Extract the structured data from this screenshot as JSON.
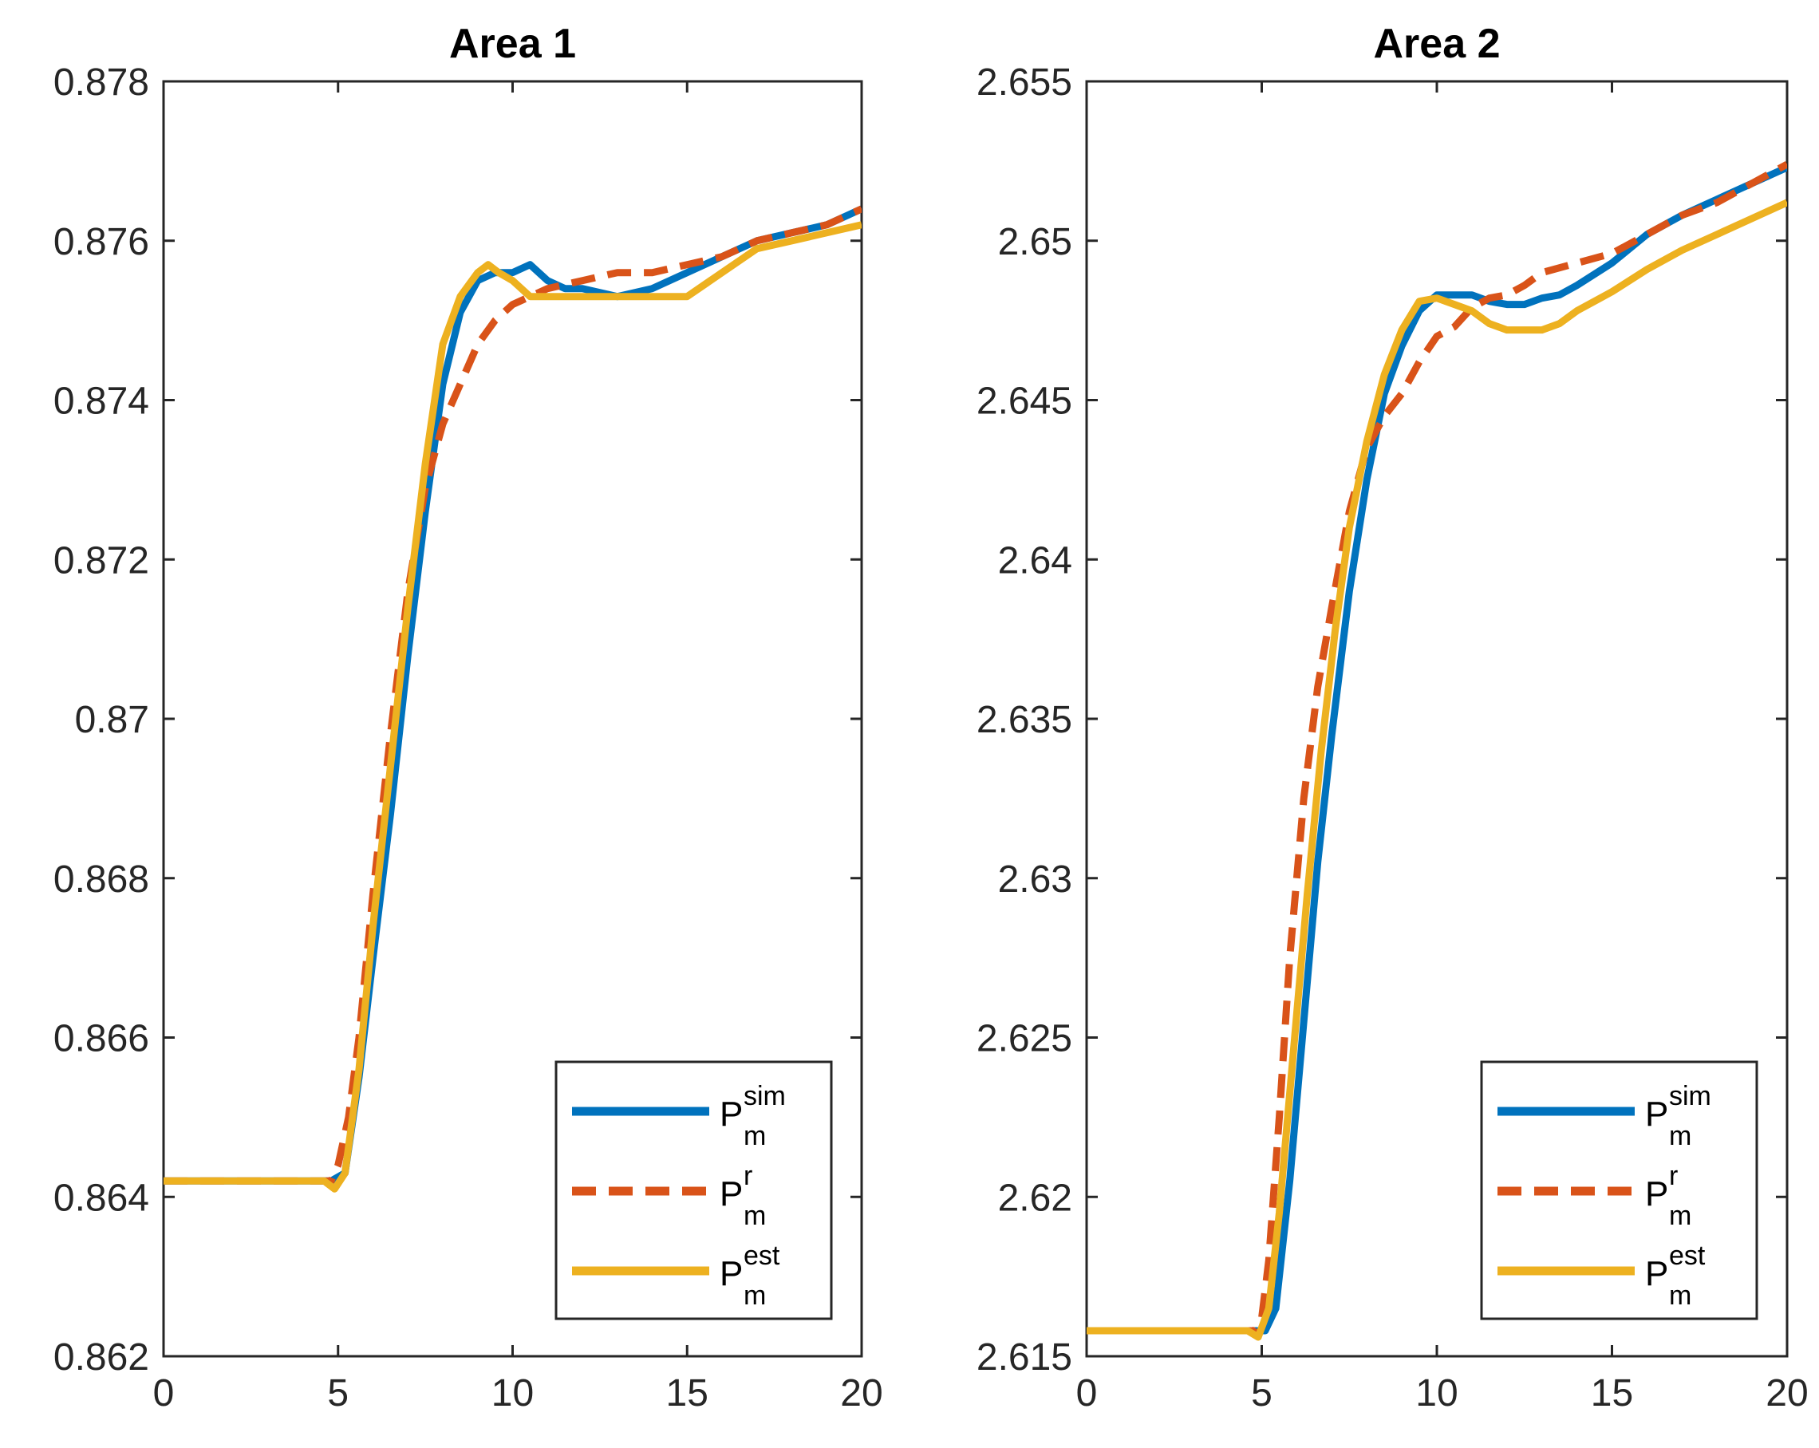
{
  "chart_data": [
    {
      "type": "line",
      "title": "Area 1",
      "xlabel": "",
      "ylabel": "",
      "xlim": [
        0,
        20
      ],
      "ylim": [
        0.862,
        0.878
      ],
      "xticks": [
        0,
        5,
        10,
        15,
        20
      ],
      "xtick_labels": [
        "0",
        "5",
        "10",
        "15",
        "20"
      ],
      "yticks": [
        0.862,
        0.864,
        0.866,
        0.868,
        0.87,
        0.872,
        0.874,
        0.876,
        0.878
      ],
      "ytick_labels": [
        "0.862",
        "0.864",
        "0.866",
        "0.868",
        "0.87",
        "0.872",
        "0.874",
        "0.876",
        "0.878"
      ],
      "grid": false,
      "legend": {
        "location": "bottom-right"
      },
      "series": [
        {
          "name": "sim",
          "legend_main": "P",
          "legend_sup": "sim",
          "legend_sub": "m",
          "color": "#0072BD",
          "style": "solid",
          "x": [
            0,
            1,
            2,
            3,
            4,
            4.8,
            5.2,
            5.6,
            6.0,
            6.5,
            7.0,
            7.5,
            8.0,
            8.5,
            9.0,
            9.5,
            10.0,
            10.5,
            11.0,
            11.5,
            12.0,
            13.0,
            14.0,
            14.5,
            15.0,
            16.0,
            17.0,
            18.0,
            19.0,
            20.0
          ],
          "y": [
            0.8642,
            0.8642,
            0.8642,
            0.8642,
            0.8642,
            0.8642,
            0.8643,
            0.8655,
            0.867,
            0.8688,
            0.8708,
            0.8726,
            0.8742,
            0.8751,
            0.8755,
            0.8756,
            0.8756,
            0.8757,
            0.8755,
            0.8754,
            0.8754,
            0.8753,
            0.8754,
            0.8755,
            0.8756,
            0.8758,
            0.876,
            0.8761,
            0.8762,
            0.8764
          ]
        },
        {
          "name": "r",
          "legend_main": "P",
          "legend_sup": "r",
          "legend_sub": "m",
          "color": "#D95319",
          "style": "dashed",
          "x": [
            0,
            1,
            2,
            3,
            4,
            4.8,
            5.0,
            5.3,
            5.6,
            6.0,
            6.5,
            7.0,
            7.5,
            8.0,
            8.5,
            9.0,
            9.5,
            10.0,
            10.5,
            11.0,
            12.0,
            13.0,
            14.0,
            15.0,
            16.0,
            17.0,
            18.0,
            19.0,
            20.0
          ],
          "y": [
            0.8642,
            0.8642,
            0.8642,
            0.8642,
            0.8642,
            0.8642,
            0.8644,
            0.865,
            0.866,
            0.8678,
            0.8698,
            0.8716,
            0.8729,
            0.8737,
            0.8742,
            0.8747,
            0.875,
            0.8752,
            0.8753,
            0.8754,
            0.8755,
            0.8756,
            0.8756,
            0.8757,
            0.8758,
            0.876,
            0.8761,
            0.8762,
            0.8764
          ]
        },
        {
          "name": "est",
          "legend_main": "P",
          "legend_sup": "est",
          "legend_sub": "m",
          "color": "#EDB120",
          "style": "solid",
          "x": [
            0,
            1,
            2,
            3,
            4,
            4.6,
            4.9,
            5.2,
            5.6,
            6.0,
            6.5,
            7.0,
            7.5,
            8.0,
            8.5,
            9.0,
            9.3,
            9.6,
            10.0,
            10.5,
            11.0,
            12.0,
            13.0,
            14.0,
            14.5,
            15.0,
            16.0,
            17.0,
            18.0,
            19.0,
            20.0
          ],
          "y": [
            0.8642,
            0.8642,
            0.8642,
            0.8642,
            0.8642,
            0.8642,
            0.8641,
            0.8643,
            0.8656,
            0.8674,
            0.8694,
            0.8714,
            0.8732,
            0.8747,
            0.8753,
            0.8756,
            0.8757,
            0.8756,
            0.8755,
            0.8753,
            0.8753,
            0.8753,
            0.8753,
            0.8753,
            0.8753,
            0.8753,
            0.8756,
            0.8759,
            0.876,
            0.8761,
            0.8762
          ]
        }
      ]
    },
    {
      "type": "line",
      "title": "Area 2",
      "xlabel": "",
      "ylabel": "",
      "xlim": [
        0,
        20
      ],
      "ylim": [
        2.615,
        2.655
      ],
      "xticks": [
        0,
        5,
        10,
        15,
        20
      ],
      "xtick_labels": [
        "0",
        "5",
        "10",
        "15",
        "20"
      ],
      "yticks": [
        2.615,
        2.62,
        2.625,
        2.63,
        2.635,
        2.64,
        2.645,
        2.65,
        2.655
      ],
      "ytick_labels": [
        "2.615",
        "2.62",
        "2.625",
        "2.63",
        "2.635",
        "2.64",
        "2.645",
        "2.65",
        "2.655"
      ],
      "grid": false,
      "legend": {
        "location": "bottom-right"
      },
      "series": [
        {
          "name": "sim",
          "legend_main": "P",
          "legend_sup": "sim",
          "legend_sub": "m",
          "color": "#0072BD",
          "style": "solid",
          "x": [
            0,
            1,
            2,
            3,
            4,
            4.8,
            5.1,
            5.4,
            5.8,
            6.2,
            6.6,
            7.0,
            7.5,
            8.0,
            8.5,
            9.0,
            9.5,
            10.0,
            10.5,
            11.0,
            11.5,
            12.0,
            12.5,
            13.0,
            13.5,
            14.0,
            15.0,
            16.0,
            17.0,
            18.0,
            19.0,
            20.0
          ],
          "y": [
            2.6158,
            2.6158,
            2.6158,
            2.6158,
            2.6158,
            2.6158,
            2.6158,
            2.6165,
            2.6205,
            2.6255,
            2.6305,
            2.6345,
            2.639,
            2.6425,
            2.6452,
            2.6467,
            2.6478,
            2.6483,
            2.6483,
            2.6483,
            2.6481,
            2.648,
            2.648,
            2.6482,
            2.6483,
            2.6486,
            2.6493,
            2.6502,
            2.6508,
            2.6513,
            2.6518,
            2.6523
          ]
        },
        {
          "name": "r",
          "legend_main": "P",
          "legend_sup": "r",
          "legend_sub": "m",
          "color": "#D95319",
          "style": "dashed",
          "x": [
            0,
            1,
            2,
            3,
            4,
            4.8,
            5.0,
            5.2,
            5.5,
            5.8,
            6.2,
            6.6,
            7.0,
            7.5,
            8.0,
            8.5,
            9.0,
            9.5,
            10.0,
            10.5,
            11.0,
            11.5,
            12.0,
            12.5,
            13.0,
            14.0,
            15.0,
            16.0,
            17.0,
            18.0,
            19.0,
            20.0
          ],
          "y": [
            2.6158,
            2.6158,
            2.6158,
            2.6158,
            2.6158,
            2.6158,
            2.6162,
            2.618,
            2.6225,
            2.6275,
            2.6325,
            2.636,
            2.6385,
            2.6415,
            2.6435,
            2.6445,
            2.6452,
            2.6462,
            2.647,
            2.6473,
            2.6479,
            2.6482,
            2.6483,
            2.6486,
            2.649,
            2.6493,
            2.6496,
            2.6502,
            2.6508,
            2.6512,
            2.6518,
            2.6524
          ]
        },
        {
          "name": "est",
          "legend_main": "P",
          "legend_sup": "est",
          "legend_sub": "m",
          "color": "#EDB120",
          "style": "solid",
          "x": [
            0,
            1,
            2,
            3,
            4,
            4.6,
            4.9,
            5.2,
            5.5,
            5.9,
            6.3,
            6.7,
            7.1,
            7.5,
            8.0,
            8.5,
            9.0,
            9.5,
            10.0,
            10.5,
            11.0,
            11.5,
            12.0,
            12.5,
            13.0,
            13.5,
            14.0,
            15.0,
            16.0,
            17.0,
            18.0,
            19.0,
            20.0
          ],
          "y": [
            2.6158,
            2.6158,
            2.6158,
            2.6158,
            2.6158,
            2.6158,
            2.6156,
            2.6165,
            2.6195,
            2.6245,
            2.6295,
            2.634,
            2.6378,
            2.641,
            2.6437,
            2.6458,
            2.6472,
            2.6481,
            2.6482,
            2.648,
            2.6478,
            2.6474,
            2.6472,
            2.6472,
            2.6472,
            2.6474,
            2.6478,
            2.6484,
            2.6491,
            2.6497,
            2.6502,
            2.6507,
            2.6512
          ]
        }
      ]
    }
  ]
}
